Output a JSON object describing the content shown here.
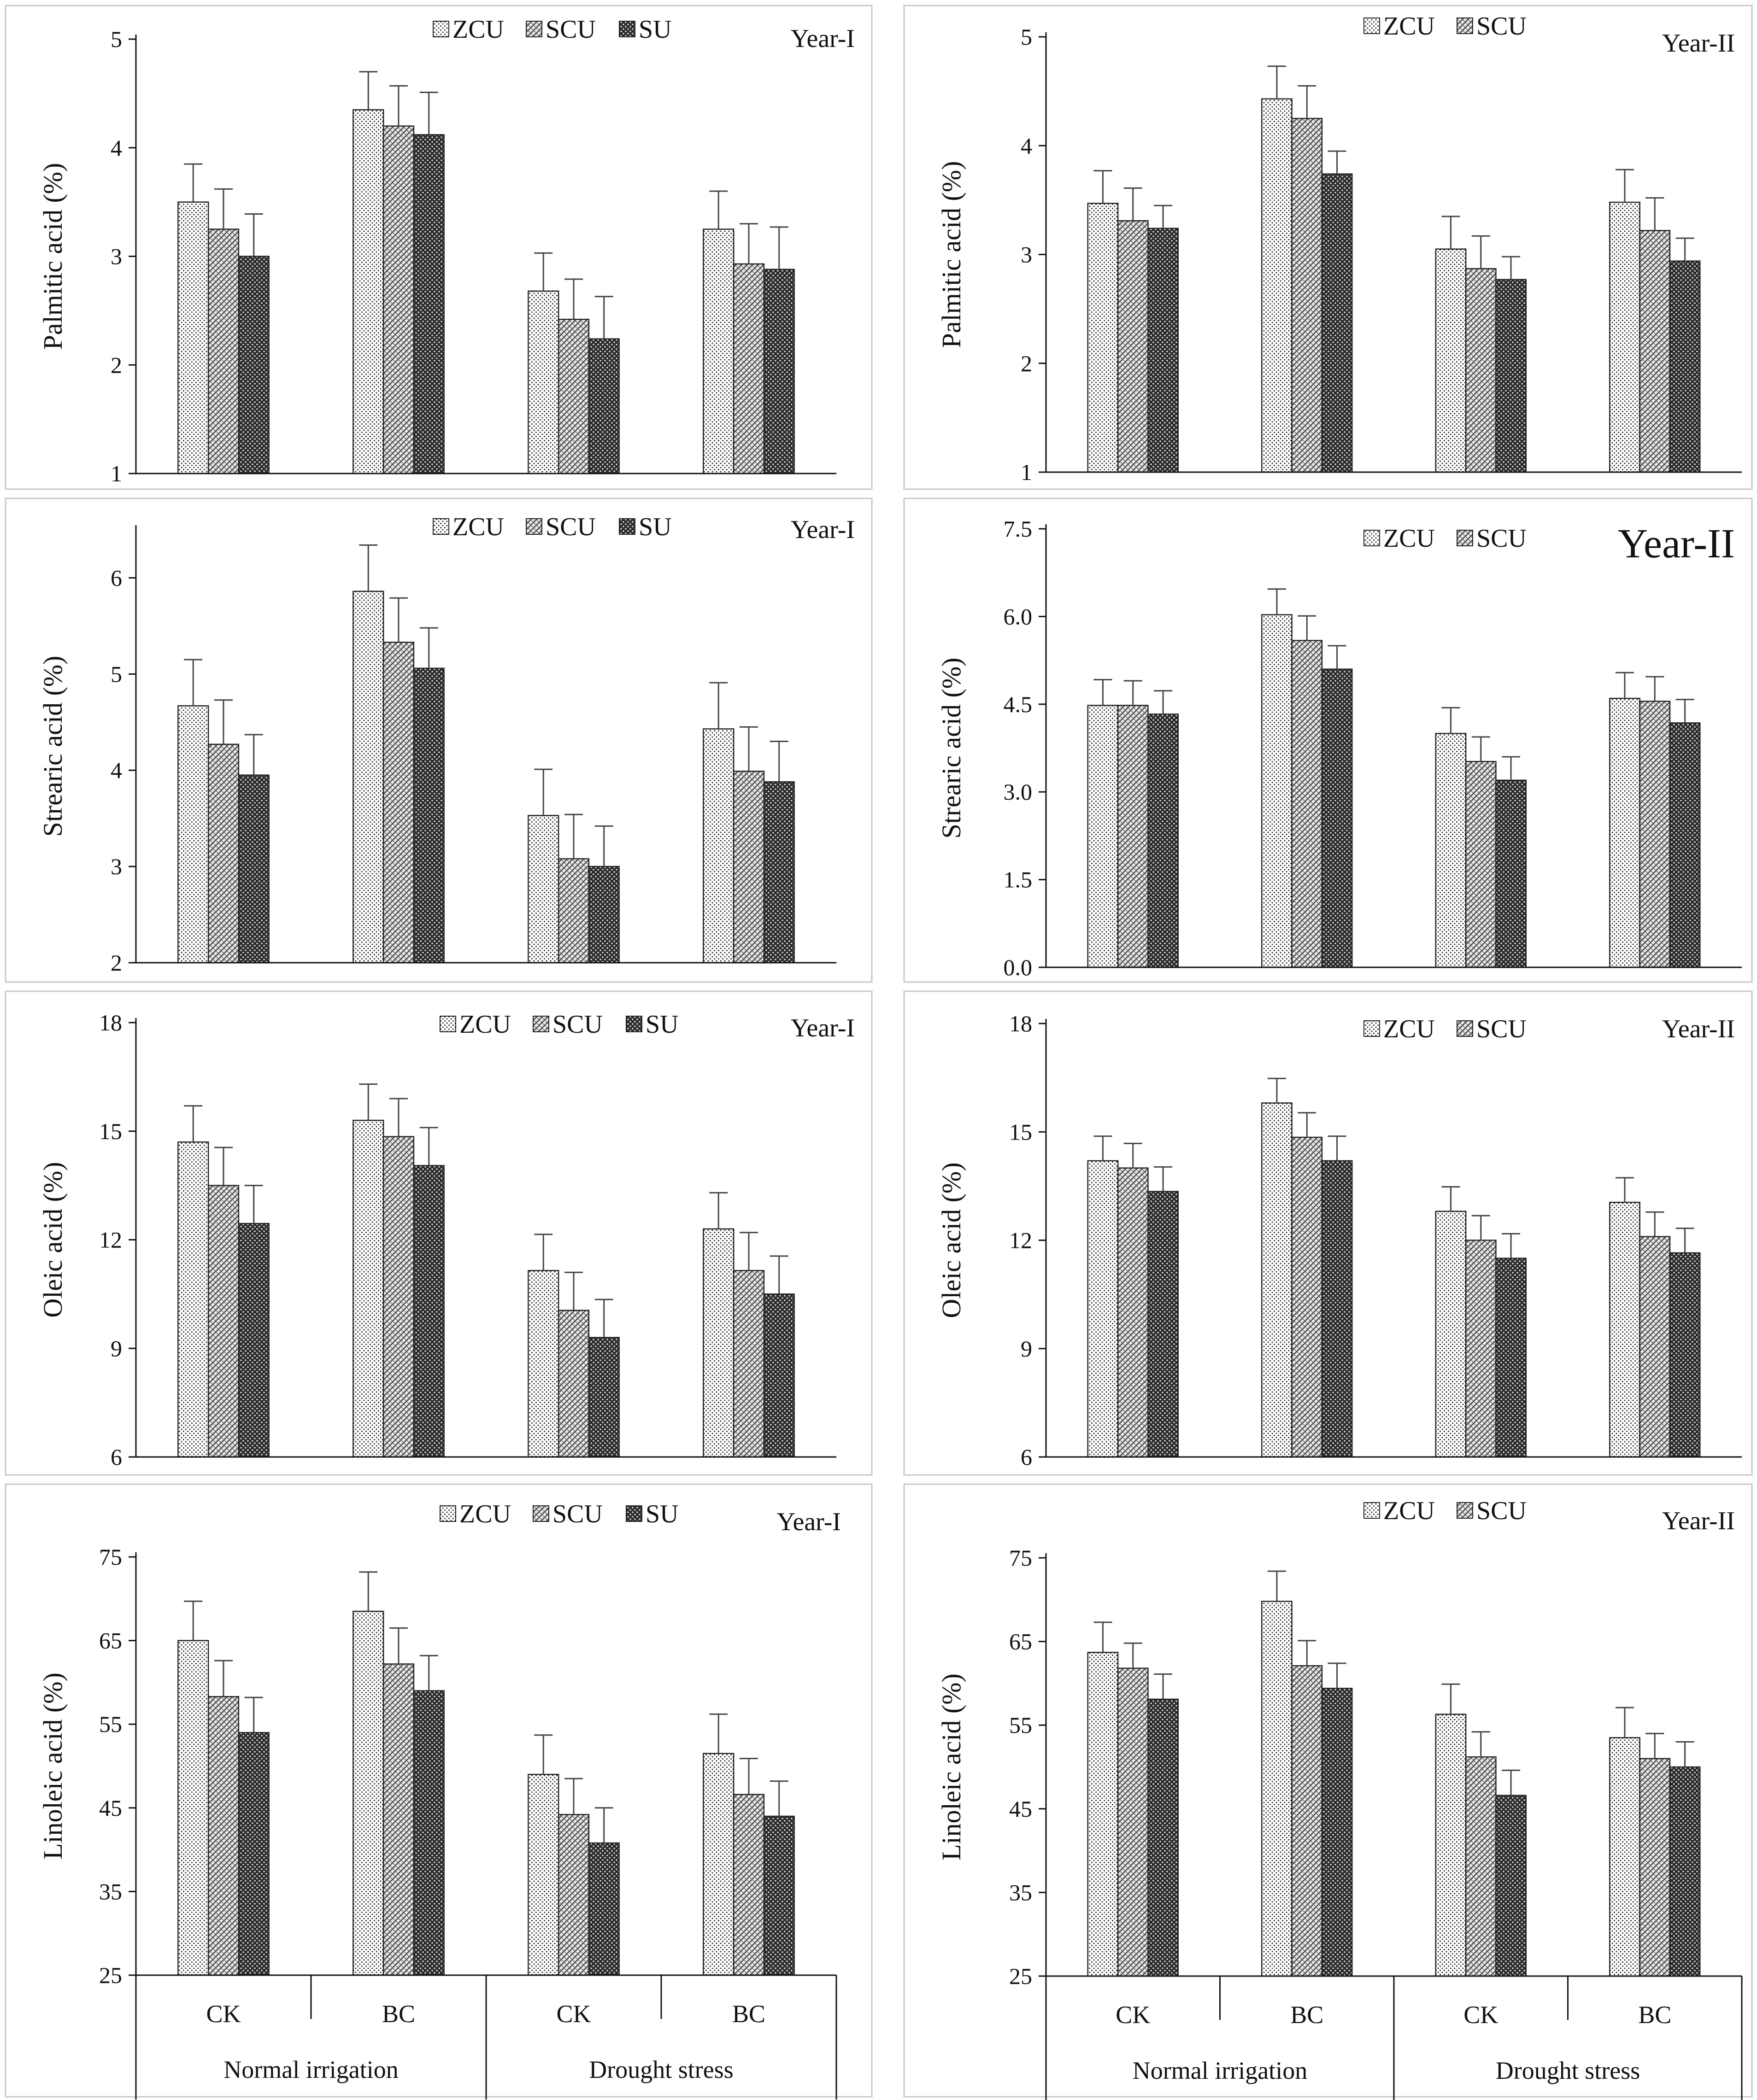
{
  "colors": {
    "axis": "#111111",
    "bar_edge": "#222222",
    "panel_border": "#c8c8c8",
    "background": "#ffffff"
  },
  "x_axis": {
    "group_labels": [
      "Normal irrigation",
      "Drought stress"
    ],
    "category_labels": [
      "CK",
      "BC",
      "CK",
      "BC"
    ]
  },
  "chart_data": [
    {
      "type": "bar",
      "title": "Year-I",
      "ylabel": "Palmitic acid (%)",
      "ylim": [
        1,
        5
      ],
      "yticks": [
        1,
        2,
        3,
        4,
        5
      ],
      "tick_labels": [
        "1",
        "2",
        "3",
        "4",
        "5"
      ],
      "categories": [
        "CK",
        "BC",
        "CK",
        "BC"
      ],
      "series": [
        {
          "name": "ZCU",
          "pattern": "dots",
          "values": [
            3.5,
            4.35,
            2.68,
            3.25
          ],
          "errors": [
            0.35,
            0.35,
            0.35,
            0.35
          ]
        },
        {
          "name": "SCU",
          "pattern": "diag",
          "values": [
            3.25,
            4.2,
            2.42,
            2.93
          ],
          "errors": [
            0.37,
            0.37,
            0.37,
            0.37
          ]
        },
        {
          "name": "SU",
          "pattern": "dense",
          "values": [
            3.0,
            4.12,
            2.24,
            2.88
          ],
          "errors": [
            0.39,
            0.39,
            0.39,
            0.39
          ]
        }
      ]
    },
    {
      "type": "bar",
      "title": "Year-II",
      "ylabel": "Palmitic acid (%)",
      "ylim": [
        1,
        5
      ],
      "yticks": [
        1,
        2,
        3,
        4,
        5
      ],
      "tick_labels": [
        "1",
        "2",
        "3",
        "4",
        "5"
      ],
      "categories": [
        "CK",
        "BC",
        "CK",
        "BC"
      ],
      "series": [
        {
          "name": "ZCU",
          "pattern": "dots",
          "values": [
            3.47,
            4.43,
            3.05,
            3.48
          ],
          "errors": [
            0.3,
            0.3,
            0.3,
            0.3
          ]
        },
        {
          "name": "SCU",
          "pattern": "diag",
          "values": [
            3.31,
            4.25,
            2.87,
            3.22
          ],
          "errors": [
            0.3,
            0.3,
            0.3,
            0.3
          ]
        },
        {
          "name": "",
          "pattern": "dense",
          "values": [
            3.24,
            3.74,
            2.77,
            2.94
          ],
          "errors": [
            0.21,
            0.21,
            0.21,
            0.21
          ]
        }
      ]
    },
    {
      "type": "bar",
      "title": "Year-I",
      "ylabel": "Strearic acid (%)",
      "ylim": [
        2,
        6.5
      ],
      "yticks": [
        2,
        3,
        4,
        5,
        6
      ],
      "tick_labels": [
        "2",
        "3",
        "4",
        "5",
        "6"
      ],
      "categories": [
        "CK",
        "BC",
        "CK",
        "BC"
      ],
      "series": [
        {
          "name": "ZCU",
          "pattern": "dots",
          "values": [
            4.67,
            5.86,
            3.53,
            4.43
          ],
          "errors": [
            0.48,
            0.48,
            0.48,
            0.48
          ]
        },
        {
          "name": "SCU",
          "pattern": "diag",
          "values": [
            4.27,
            5.33,
            3.08,
            3.99
          ],
          "errors": [
            0.46,
            0.46,
            0.46,
            0.46
          ]
        },
        {
          "name": "SU",
          "pattern": "dense",
          "values": [
            3.95,
            5.06,
            3.0,
            3.88
          ],
          "errors": [
            0.42,
            0.42,
            0.42,
            0.42
          ]
        }
      ]
    },
    {
      "type": "bar",
      "title": "Year-II",
      "ylabel": "Strearic acid (%)",
      "ylim": [
        0,
        7.5
      ],
      "yticks": [
        0,
        1.5,
        3,
        4.5,
        6,
        7.5
      ],
      "tick_labels": [
        "0.0",
        "1.5",
        "3.0",
        "4.5",
        "6.0",
        "7.5"
      ],
      "categories": [
        "CK",
        "BC",
        "CK",
        "BC"
      ],
      "series": [
        {
          "name": "ZCU",
          "pattern": "dots",
          "values": [
            4.48,
            6.03,
            4.0,
            4.6
          ],
          "errors": [
            0.44,
            0.44,
            0.44,
            0.44
          ]
        },
        {
          "name": "SCU",
          "pattern": "diag",
          "values": [
            4.48,
            5.59,
            3.52,
            4.55
          ],
          "errors": [
            0.42,
            0.42,
            0.42,
            0.42
          ]
        },
        {
          "name": "",
          "pattern": "dense",
          "values": [
            4.33,
            5.1,
            3.2,
            4.18
          ],
          "errors": [
            0.4,
            0.4,
            0.4,
            0.4
          ]
        }
      ]
    },
    {
      "type": "bar",
      "title": "Year-I",
      "ylabel": "Oleic acid (%)",
      "ylim": [
        6,
        18
      ],
      "yticks": [
        6,
        9,
        12,
        15,
        18
      ],
      "tick_labels": [
        "6",
        "9",
        "12",
        "15",
        "18"
      ],
      "categories": [
        "CK",
        "BC",
        "CK",
        "BC"
      ],
      "series": [
        {
          "name": "ZCU",
          "pattern": "dots",
          "values": [
            14.7,
            15.3,
            11.15,
            12.3
          ],
          "errors": [
            1.0,
            1.0,
            1.0,
            1.0
          ]
        },
        {
          "name": "SCU",
          "pattern": "diag",
          "values": [
            13.5,
            14.85,
            10.05,
            11.15
          ],
          "errors": [
            1.05,
            1.05,
            1.05,
            1.05
          ]
        },
        {
          "name": "SU",
          "pattern": "dense",
          "values": [
            12.45,
            14.05,
            9.3,
            10.5
          ],
          "errors": [
            1.05,
            1.05,
            1.05,
            1.05
          ]
        }
      ]
    },
    {
      "type": "bar",
      "title": "Year-II",
      "ylabel": "Oleic acid (%)",
      "ylim": [
        6,
        18
      ],
      "yticks": [
        6,
        9,
        12,
        15,
        18
      ],
      "tick_labels": [
        "6",
        "9",
        "12",
        "15",
        "18"
      ],
      "categories": [
        "CK",
        "BC",
        "CK",
        "BC"
      ],
      "series": [
        {
          "name": "ZCU",
          "pattern": "dots",
          "values": [
            14.2,
            15.8,
            12.8,
            13.05
          ],
          "errors": [
            0.68,
            0.68,
            0.68,
            0.68
          ]
        },
        {
          "name": "SCU",
          "pattern": "diag",
          "values": [
            14.0,
            14.85,
            12.0,
            12.1
          ],
          "errors": [
            0.68,
            0.68,
            0.68,
            0.68
          ]
        },
        {
          "name": "",
          "pattern": "dense",
          "values": [
            13.35,
            14.2,
            11.5,
            11.65
          ],
          "errors": [
            0.68,
            0.68,
            0.68,
            0.68
          ]
        }
      ]
    },
    {
      "type": "bar",
      "title": "Year-I",
      "ylabel": "Linoleic acid (%)",
      "ylim": [
        25,
        75
      ],
      "yticks": [
        25,
        35,
        45,
        55,
        65,
        75
      ],
      "tick_labels": [
        "25",
        "35",
        "45",
        "55",
        "65",
        "75"
      ],
      "categories": [
        "CK",
        "BC",
        "CK",
        "BC"
      ],
      "series": [
        {
          "name": "ZCU",
          "pattern": "dots",
          "values": [
            65.0,
            68.5,
            49.0,
            51.5
          ],
          "errors": [
            4.7,
            4.7,
            4.7,
            4.7
          ]
        },
        {
          "name": "SCU",
          "pattern": "diag",
          "values": [
            58.3,
            62.2,
            44.2,
            46.6
          ],
          "errors": [
            4.3,
            4.3,
            4.3,
            4.3
          ]
        },
        {
          "name": "SU",
          "pattern": "dense",
          "values": [
            54.0,
            59.0,
            40.8,
            44.0
          ],
          "errors": [
            4.2,
            4.2,
            4.2,
            4.2
          ]
        }
      ]
    },
    {
      "type": "bar",
      "title": "Year-II",
      "ylabel": "Linoleic acid (%)",
      "ylim": [
        25,
        75
      ],
      "yticks": [
        25,
        35,
        45,
        55,
        65,
        75
      ],
      "tick_labels": [
        "25",
        "35",
        "45",
        "55",
        "65",
        "75"
      ],
      "categories": [
        "CK",
        "BC",
        "CK",
        "BC"
      ],
      "series": [
        {
          "name": "ZCU",
          "pattern": "dots",
          "values": [
            63.7,
            69.8,
            56.3,
            53.5
          ],
          "errors": [
            3.6,
            3.6,
            3.6,
            3.6
          ]
        },
        {
          "name": "SCU",
          "pattern": "diag",
          "values": [
            61.8,
            62.1,
            51.2,
            51.0
          ],
          "errors": [
            3.0,
            3.0,
            3.0,
            3.0
          ]
        },
        {
          "name": "",
          "pattern": "dense",
          "values": [
            58.1,
            59.4,
            46.6,
            50.0
          ],
          "errors": [
            3.0,
            3.0,
            3.0,
            3.0
          ]
        }
      ]
    }
  ]
}
